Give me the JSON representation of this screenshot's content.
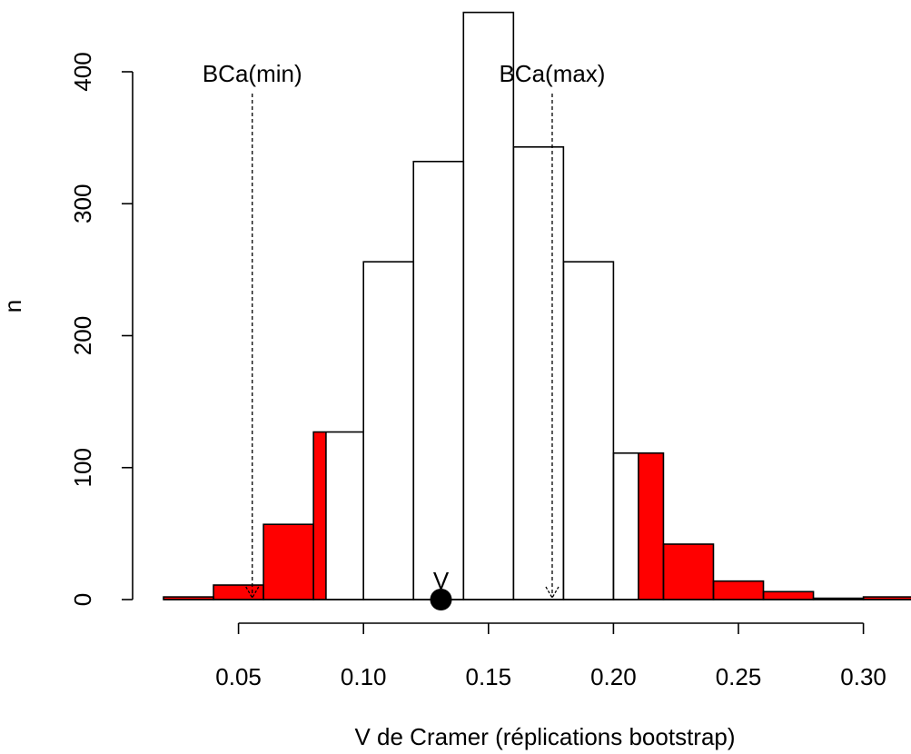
{
  "chart_data": {
    "type": "bar",
    "title": "",
    "xlabel": "V de Cramer (réplications bootstrap)",
    "ylabel": "n",
    "xlim": [
      0.02,
      0.32
    ],
    "ylim": [
      0,
      440
    ],
    "x_ticks": [
      0.05,
      0.1,
      0.15,
      0.2,
      0.25,
      0.3
    ],
    "x_tick_labels": [
      "0.05",
      "0.10",
      "0.15",
      "0.20",
      "0.25",
      "0.30"
    ],
    "y_ticks": [
      0,
      100,
      200,
      300,
      400
    ],
    "y_tick_labels": [
      "0",
      "100",
      "200",
      "300",
      "400"
    ],
    "bins": [
      {
        "x0": 0.02,
        "x1": 0.04,
        "count": 2
      },
      {
        "x0": 0.04,
        "x1": 0.06,
        "count": 11
      },
      {
        "x0": 0.06,
        "x1": 0.08,
        "count": 57
      },
      {
        "x0": 0.08,
        "x1": 0.1,
        "count": 127
      },
      {
        "x0": 0.1,
        "x1": 0.12,
        "count": 256
      },
      {
        "x0": 0.12,
        "x1": 0.14,
        "count": 332
      },
      {
        "x0": 0.14,
        "x1": 0.16,
        "count": 445
      },
      {
        "x0": 0.16,
        "x1": 0.18,
        "count": 343
      },
      {
        "x0": 0.18,
        "x1": 0.2,
        "count": 256
      },
      {
        "x0": 0.2,
        "x1": 0.22,
        "count": 111
      },
      {
        "x0": 0.22,
        "x1": 0.24,
        "count": 42
      },
      {
        "x0": 0.24,
        "x1": 0.26,
        "count": 14
      },
      {
        "x0": 0.26,
        "x1": 0.28,
        "count": 6
      },
      {
        "x0": 0.28,
        "x1": 0.3,
        "count": 1
      },
      {
        "x0": 0.3,
        "x1": 0.32,
        "count": 2
      }
    ],
    "shaded_regions": [
      {
        "x0": 0.02,
        "x1": 0.085,
        "color": "#ff0000"
      },
      {
        "x0": 0.21,
        "x1": 0.32,
        "color": "#ff0000"
      }
    ],
    "point": {
      "label": "V",
      "x": 0.131,
      "y": 0
    },
    "annotations": [
      {
        "label": "BCa(min)",
        "x": 0.0555,
        "y_top": 400
      },
      {
        "label": "BCa(max)",
        "x": 0.1755,
        "y_top": 400
      }
    ],
    "colors": {
      "bar_fill": "#ffffff",
      "shade": "#ff0000",
      "stroke": "#000000"
    }
  }
}
